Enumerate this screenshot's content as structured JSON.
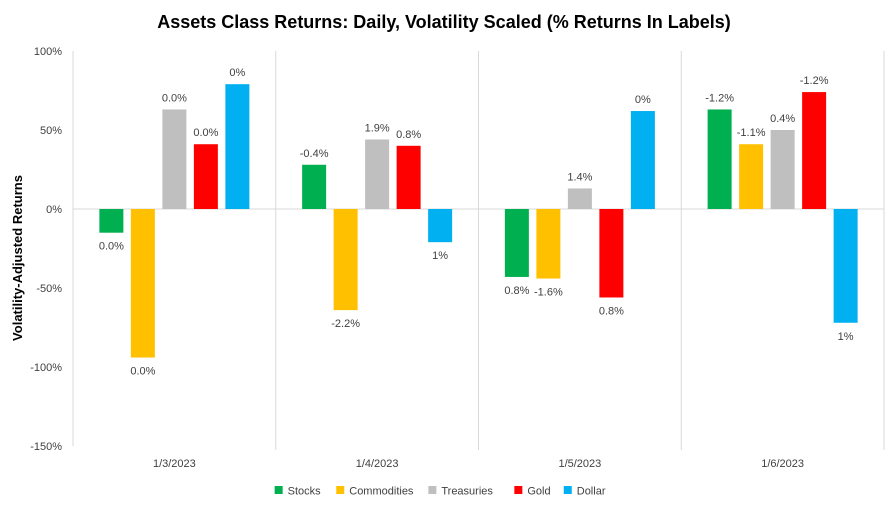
{
  "chart_data": {
    "type": "bar",
    "title": "Assets Class Returns: Daily, Volatility Scaled (% Returns In Labels)",
    "xlabel": "",
    "ylabel": "Volatility-Adjusted Returns",
    "ylim": [
      -150,
      100
    ],
    "yticks": [
      100,
      50,
      0,
      -50,
      -100,
      -150
    ],
    "ytick_labels": [
      "100%",
      "50%",
      "0%",
      "-50%",
      "-100%",
      "-150%"
    ],
    "grid": false,
    "legend_position": "bottom-center",
    "categories": [
      "1/3/2023",
      "1/4/2023",
      "1/5/2023",
      "1/6/2023"
    ],
    "series": [
      {
        "name": "Stocks",
        "color": "#00B050",
        "values": [
          -15,
          28,
          -43,
          63
        ],
        "labels": [
          "0.0%",
          "-0.4%",
          "0.8%",
          "-1.2%"
        ]
      },
      {
        "name": "Commodities",
        "color": "#FFC000",
        "values": [
          -94,
          -64,
          -44,
          41
        ],
        "labels": [
          "0.0%",
          "-2.2%",
          "-1.6%",
          "-1.1%"
        ]
      },
      {
        "name": "Treasuries",
        "color": "#BFBFBF",
        "values": [
          63,
          44,
          13,
          50
        ],
        "labels": [
          "0.0%",
          "1.9%",
          "1.4%",
          "0.4%"
        ]
      },
      {
        "name": "Gold",
        "color": "#FF0000",
        "values": [
          41,
          40,
          -56,
          74
        ],
        "labels": [
          "0.0%",
          "0.8%",
          "0.8%",
          "-1.2%"
        ]
      },
      {
        "name": "Dollar",
        "color": "#00B0F0",
        "values": [
          79,
          -21,
          62,
          -72
        ],
        "labels": [
          "0%",
          "1%",
          "0%",
          "1%"
        ]
      }
    ]
  }
}
